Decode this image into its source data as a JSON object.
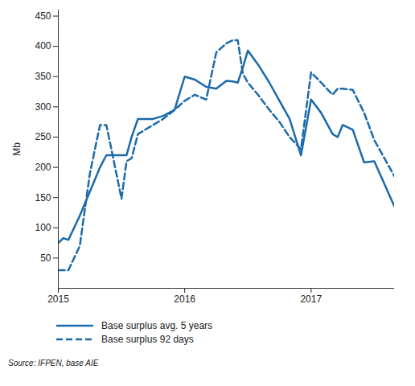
{
  "chart_data": {
    "type": "line",
    "y_label": "Mb",
    "caption": "Source: IFPEN, base AIE",
    "x": [
      2015,
      2015.04,
      2015.08,
      2015.17,
      2015.25,
      2015.33,
      2015.38,
      2015.42,
      2015.5,
      2015.54,
      2015.58,
      2015.63,
      2015.75,
      2015.83,
      2015.92,
      2016,
      2016.08,
      2016.17,
      2016.25,
      2016.33,
      2016.38,
      2016.42,
      2016.46,
      2016.5,
      2016.58,
      2016.67,
      2016.75,
      2016.83,
      2016.92,
      2017,
      2017.08,
      2017.17,
      2017.21,
      2017.25,
      2017.33,
      2017.42,
      2017.5,
      2017.66
    ],
    "series": [
      {
        "name": "Base surplus avg. 5 years",
        "color": "#1b6aaa",
        "line_style": "solid",
        "values": [
          75,
          83,
          80,
          120,
          160,
          200,
          220,
          220,
          220,
          220,
          250,
          280,
          280,
          285,
          295,
          350,
          345,
          333,
          330,
          343,
          342,
          340,
          365,
          393,
          370,
          340,
          310,
          280,
          220,
          312,
          290,
          255,
          250,
          270,
          262,
          208,
          210,
          135
        ]
      },
      {
        "name": "Base surplus 92 days",
        "color": "#1b6aaa",
        "line_style": "dashed",
        "values": [
          30,
          30,
          30,
          70,
          190,
          270,
          270,
          230,
          148,
          210,
          215,
          255,
          270,
          280,
          295,
          310,
          320,
          312,
          390,
          405,
          410,
          410,
          355,
          340,
          320,
          295,
          275,
          250,
          230,
          357,
          340,
          320,
          330,
          330,
          328,
          290,
          245,
          185
        ]
      }
    ],
    "xlim": [
      2015,
      2017.66
    ],
    "xticks": [
      2015,
      2016,
      2017
    ],
    "ylim": [
      0,
      460
    ],
    "yticks": [
      50,
      100,
      150,
      200,
      250,
      300,
      350,
      400,
      450
    ],
    "grid": false,
    "legend": "bottom"
  }
}
